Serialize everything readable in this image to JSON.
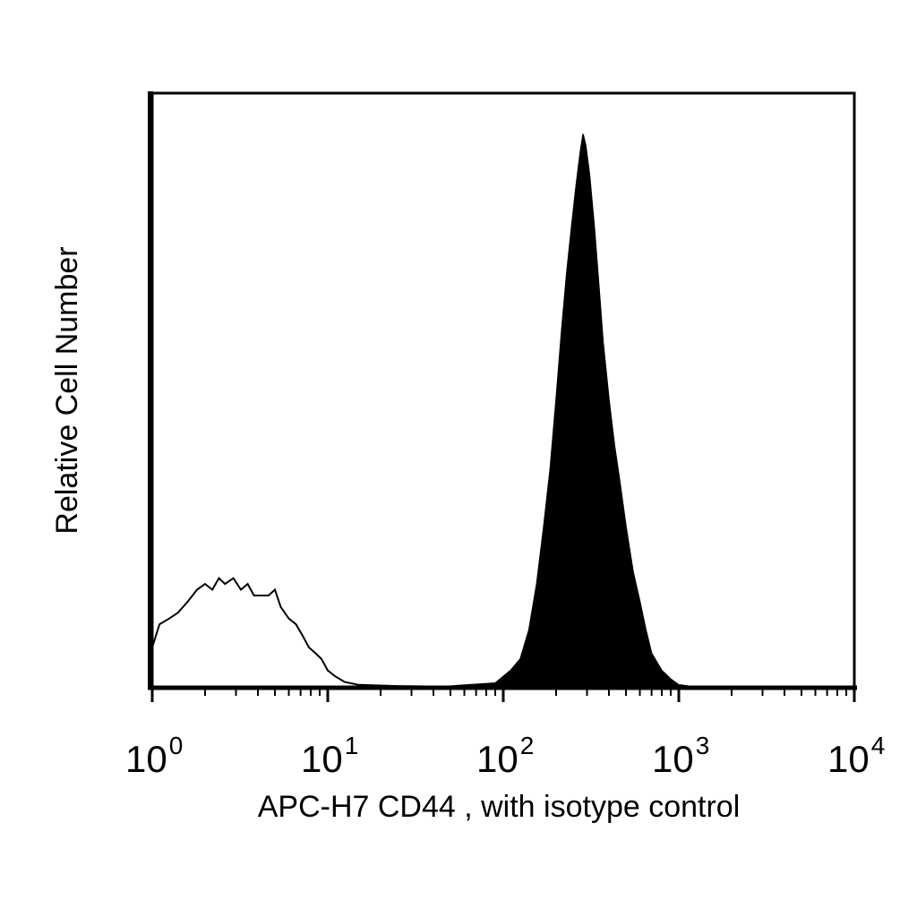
{
  "chart_data": {
    "type": "area",
    "title": "",
    "xlabel": "APC-H7 CD44 , with isotype control",
    "ylabel": "Relative Cell Number",
    "x_scale": "log",
    "xlim": [
      1,
      10000
    ],
    "ylim": [
      0,
      100
    ],
    "grid": false,
    "legend": "none",
    "x_ticks": [
      {
        "base": "10",
        "exp": "0",
        "value": 1
      },
      {
        "base": "10",
        "exp": "1",
        "value": 10
      },
      {
        "base": "10",
        "exp": "2",
        "value": 100
      },
      {
        "base": "10",
        "exp": "3",
        "value": 1000
      },
      {
        "base": "10",
        "exp": "4",
        "value": 10000
      }
    ],
    "series": [
      {
        "style": "outline",
        "color": "#000000",
        "points": [
          [
            1.0,
            7
          ],
          [
            1.1,
            11
          ],
          [
            1.25,
            12
          ],
          [
            1.4,
            13
          ],
          [
            1.6,
            15
          ],
          [
            1.8,
            17
          ],
          [
            2.0,
            18
          ],
          [
            2.2,
            17
          ],
          [
            2.4,
            19
          ],
          [
            2.6,
            18
          ],
          [
            2.9,
            19
          ],
          [
            3.2,
            17
          ],
          [
            3.5,
            18
          ],
          [
            3.8,
            16
          ],
          [
            4.2,
            16
          ],
          [
            4.6,
            16
          ],
          [
            5.0,
            17
          ],
          [
            5.4,
            14
          ],
          [
            6.0,
            12
          ],
          [
            6.6,
            11
          ],
          [
            7.2,
            9
          ],
          [
            7.8,
            7
          ],
          [
            8.5,
            6
          ],
          [
            9.2,
            5
          ],
          [
            10.0,
            3
          ],
          [
            11.0,
            2
          ],
          [
            12.5,
            1
          ],
          [
            15,
            0.5
          ],
          [
            25,
            0.3
          ],
          [
            50,
            0.2
          ],
          [
            100,
            0.1
          ],
          [
            10000,
            0
          ]
        ]
      },
      {
        "style": "filled",
        "color": "#000000",
        "points": [
          [
            1.0,
            0
          ],
          [
            50,
            0.3
          ],
          [
            90,
            0.8
          ],
          [
            110,
            3
          ],
          [
            125,
            5
          ],
          [
            140,
            10
          ],
          [
            155,
            18
          ],
          [
            170,
            28
          ],
          [
            185,
            38
          ],
          [
            200,
            50
          ],
          [
            215,
            62
          ],
          [
            230,
            72
          ],
          [
            245,
            80
          ],
          [
            260,
            87
          ],
          [
            275,
            93
          ],
          [
            285,
            96
          ],
          [
            295,
            94
          ],
          [
            310,
            89
          ],
          [
            330,
            80
          ],
          [
            350,
            70
          ],
          [
            370,
            60
          ],
          [
            400,
            50
          ],
          [
            430,
            42
          ],
          [
            460,
            36
          ],
          [
            500,
            28
          ],
          [
            550,
            20
          ],
          [
            600,
            15
          ],
          [
            650,
            10
          ],
          [
            700,
            6
          ],
          [
            800,
            3
          ],
          [
            900,
            1.5
          ],
          [
            1000,
            0.5
          ],
          [
            1200,
            0.2
          ],
          [
            10000,
            0
          ]
        ]
      }
    ]
  }
}
